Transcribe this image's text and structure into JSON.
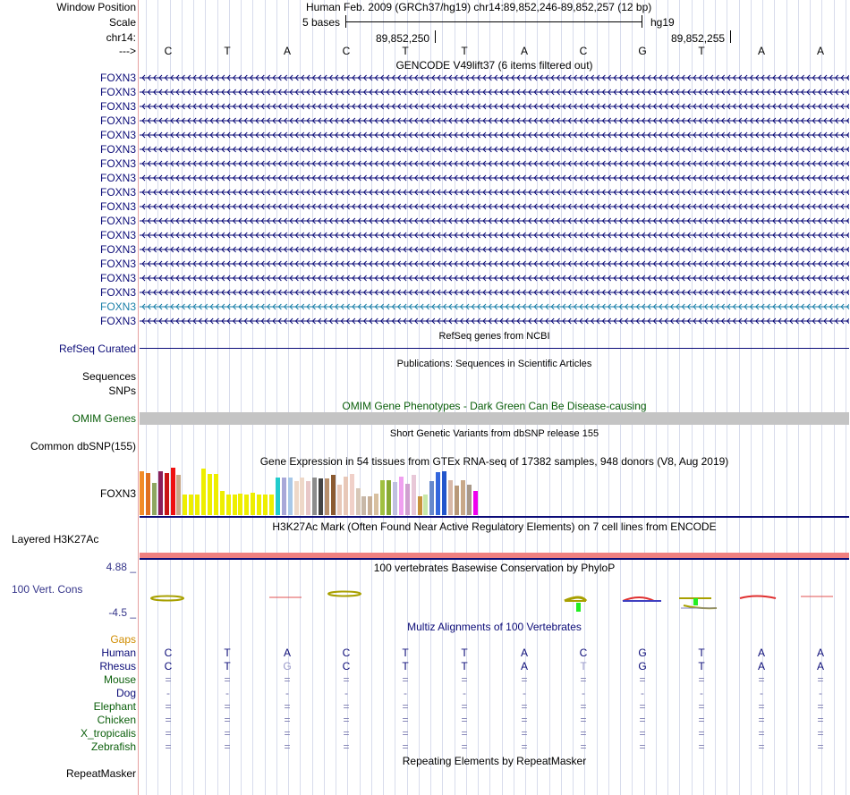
{
  "header": {
    "window_position_label": "Window Position",
    "scale_label": "Scale",
    "chrom_label": "chr14:",
    "strand_label": "--->",
    "assembly_text": "Human Feb. 2009 (GRCh37/hg19)   chr14:89,852,246-89,852,257 (12 bp)",
    "scale_text": "5 bases",
    "genome_tag": "hg19",
    "pos_mark_1": "89,852,250",
    "pos_mark_2": "89,852,255"
  },
  "sequence": [
    "C",
    "T",
    "A",
    "C",
    "T",
    "T",
    "A",
    "C",
    "G",
    "T",
    "A",
    "A"
  ],
  "gencode": {
    "title": "GENCODE V49lift37 (6 items filtered out)",
    "gene_label": "FOXN3",
    "highlighted_index": 16,
    "rows": 18,
    "color": "#0c0c78",
    "highlight_color": "#1a7fa8"
  },
  "refseq": {
    "label": "RefSeq Curated",
    "title": "RefSeq genes from NCBI"
  },
  "publications": {
    "title": "Publications: Sequences in Scientific Articles",
    "label_1": "Sequences",
    "label_2": "SNPs"
  },
  "omim": {
    "label": "OMIM Genes",
    "title": "OMIM Gene Phenotypes - Dark Green Can Be Disease-causing",
    "color": "#0b5f0b",
    "bar_color": "#c4c4c4"
  },
  "dbsnp": {
    "label": "Common dbSNP(155)",
    "title": "Short Genetic Variants from dbSNP release 155"
  },
  "gtex": {
    "title": "Gene Expression in 54 tissues from GTEx RNA-seq of 17382 samples, 948 donors (V8, Aug 2019)",
    "gene_label": "FOXN3",
    "bars": [
      {
        "v": 0.92,
        "c": "#f28c28"
      },
      {
        "v": 0.88,
        "c": "#e07020"
      },
      {
        "v": 0.68,
        "c": "#8ea660"
      },
      {
        "v": 0.93,
        "c": "#8a1f5a"
      },
      {
        "v": 0.88,
        "c": "#c81414"
      },
      {
        "v": 1.0,
        "c": "#ee1111"
      },
      {
        "v": 0.84,
        "c": "#c8a888"
      },
      {
        "v": 0.43,
        "c": "#eeee00"
      },
      {
        "v": 0.43,
        "c": "#eeee00"
      },
      {
        "v": 0.43,
        "c": "#eeee00"
      },
      {
        "v": 0.98,
        "c": "#eeee00"
      },
      {
        "v": 0.86,
        "c": "#eeee00"
      },
      {
        "v": 0.86,
        "c": "#eeee00"
      },
      {
        "v": 0.51,
        "c": "#eeee00"
      },
      {
        "v": 0.44,
        "c": "#eeee00"
      },
      {
        "v": 0.43,
        "c": "#eeee00"
      },
      {
        "v": 0.45,
        "c": "#eeee00"
      },
      {
        "v": 0.43,
        "c": "#eeee00"
      },
      {
        "v": 0.47,
        "c": "#eeee00"
      },
      {
        "v": 0.43,
        "c": "#eeee00"
      },
      {
        "v": 0.43,
        "c": "#eeee00"
      },
      {
        "v": 0.44,
        "c": "#eeee00"
      },
      {
        "v": 0.79,
        "c": "#22cccc"
      },
      {
        "v": 0.8,
        "c": "#a8a8d8"
      },
      {
        "v": 0.79,
        "c": "#a8c8e8"
      },
      {
        "v": 0.72,
        "c": "#eed8c8"
      },
      {
        "v": 0.79,
        "c": "#eed8c8"
      },
      {
        "v": 0.72,
        "c": "#e8c8c8"
      },
      {
        "v": 0.79,
        "c": "#8c8c8c"
      },
      {
        "v": 0.77,
        "c": "#444444"
      },
      {
        "v": 0.77,
        "c": "#b8906c"
      },
      {
        "v": 0.85,
        "c": "#8b5a30"
      },
      {
        "v": 0.65,
        "c": "#e8c8b8"
      },
      {
        "v": 0.82,
        "c": "#e8c8b8"
      },
      {
        "v": 0.86,
        "c": "#f0d0c8"
      },
      {
        "v": 0.57,
        "c": "#d8c8b8"
      },
      {
        "v": 0.4,
        "c": "#c8b8a8"
      },
      {
        "v": 0.4,
        "c": "#c8b098"
      },
      {
        "v": 0.45,
        "c": "#d8c0a0"
      },
      {
        "v": 0.73,
        "c": "#a0c040"
      },
      {
        "v": 0.73,
        "c": "#88aa33"
      },
      {
        "v": 0.7,
        "c": "#c0c0e0"
      },
      {
        "v": 0.82,
        "c": "#f0a0f0"
      },
      {
        "v": 0.66,
        "c": "#d0a0d0"
      },
      {
        "v": 0.85,
        "c": "#e8c8d8"
      },
      {
        "v": 0.4,
        "c": "#c8923c"
      },
      {
        "v": 0.44,
        "c": "#c8e8a8"
      },
      {
        "v": 0.72,
        "c": "#6688cc"
      },
      {
        "v": 0.91,
        "c": "#3366dd"
      },
      {
        "v": 0.93,
        "c": "#2255cc"
      },
      {
        "v": 0.73,
        "c": "#d8b8a8"
      },
      {
        "v": 0.63,
        "c": "#b89878"
      },
      {
        "v": 0.73,
        "c": "#c8a888"
      },
      {
        "v": 0.65,
        "c": "#a89888"
      }
    ]
  },
  "h3k27ac": {
    "label": "Layered H3K27Ac",
    "title": "H3K27Ac Mark (Often Found Near Active Regulatory Elements) on 7 cell lines from ENCODE",
    "color": "#f08080"
  },
  "phylop": {
    "label": "100 Vert. Cons",
    "title": "100 vertebrates Basewise Conservation by PhyloP",
    "max_value": "4.88 _",
    "min_value": "-4.5 _",
    "color": "#35358a"
  },
  "multiz": {
    "title": "Multiz Alignments of 100 Vertebrates",
    "gaps_label": "Gaps",
    "species": [
      {
        "name": "Human",
        "color": "#0c0c78",
        "row": [
          "C",
          "T",
          "A",
          "C",
          "T",
          "T",
          "A",
          "C",
          "G",
          "T",
          "A",
          "A"
        ]
      },
      {
        "name": "Rhesus",
        "color": "#0c0c78",
        "row": [
          "C",
          "T",
          "G",
          "C",
          "T",
          "T",
          "A",
          "T",
          "G",
          "T",
          "A",
          "A"
        ]
      },
      {
        "name": "Mouse",
        "color": "#0b5f0b",
        "row": [
          "=",
          "=",
          "=",
          "=",
          "=",
          "=",
          "=",
          "=",
          "=",
          "=",
          "=",
          "="
        ]
      },
      {
        "name": "Dog",
        "color": "#0c0c78",
        "row": [
          "-",
          "-",
          "-",
          "-",
          "-",
          "-",
          "-",
          "-",
          "-",
          "-",
          "-",
          "-"
        ]
      },
      {
        "name": "Elephant",
        "color": "#0b5f0b",
        "row": [
          "=",
          "=",
          "=",
          "=",
          "=",
          "=",
          "=",
          "=",
          "=",
          "=",
          "=",
          "="
        ]
      },
      {
        "name": "Chicken",
        "color": "#0b5f0b",
        "row": [
          "=",
          "=",
          "=",
          "=",
          "=",
          "=",
          "=",
          "=",
          "=",
          "=",
          "=",
          "="
        ]
      },
      {
        "name": "X_tropicalis",
        "color": "#0b5f0b",
        "row": [
          "=",
          "=",
          "=",
          "=",
          "=",
          "=",
          "=",
          "=",
          "=",
          "=",
          "=",
          "="
        ]
      },
      {
        "name": "Zebrafish",
        "color": "#0b5f0b",
        "row": [
          "=",
          "=",
          "=",
          "=",
          "=",
          "=",
          "=",
          "=",
          "=",
          "=",
          "=",
          "="
        ]
      }
    ]
  },
  "repeatmasker": {
    "label": "RepeatMasker",
    "title": "Repeating Elements by RepeatMasker"
  }
}
